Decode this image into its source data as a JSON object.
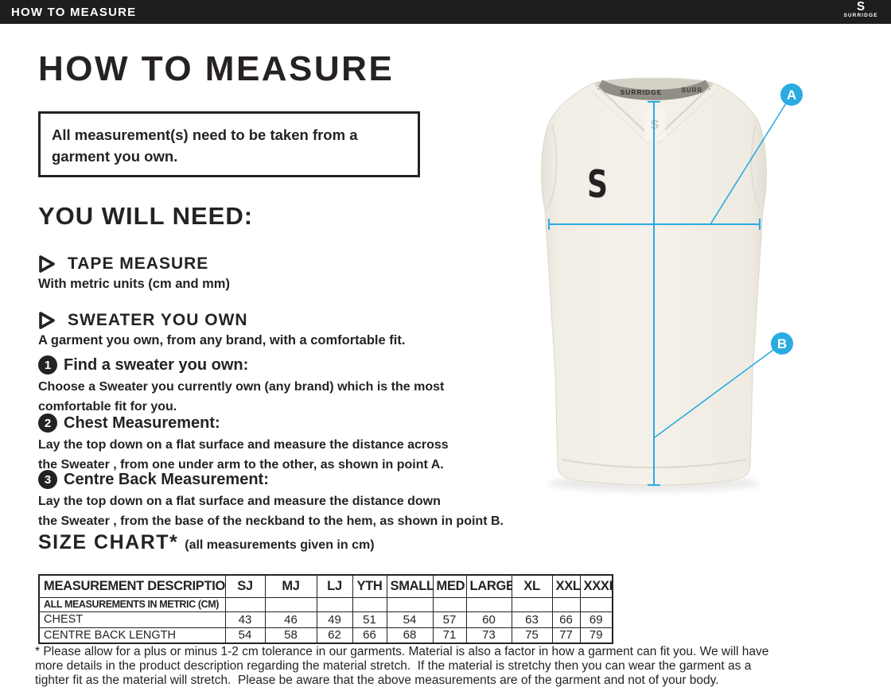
{
  "top_bar": {
    "title": "HOW TO MEASURE",
    "brand": "SURRIDGE",
    "logo_glyph": "S"
  },
  "page": {
    "title": "HOW TO MEASURE",
    "notice": "All measurement(s) need to be taken from a\ngarment you own."
  },
  "you_will_need": {
    "heading": "YOU WILL NEED:",
    "items": [
      {
        "title": "TAPE MEASURE",
        "description": "With metric units (cm and mm)"
      },
      {
        "title": "SWEATER YOU OWN",
        "description": "A garment you own, from any brand, with a comfortable fit."
      }
    ]
  },
  "steps": [
    {
      "number": "1",
      "title": "Find a sweater you own:",
      "description": "Choose a Sweater you currently own (any brand) which is the most\ncomfortable fit for you."
    },
    {
      "number": "2",
      "title": "Chest Measurement:",
      "description": "Lay the top down on a flat surface and measure the distance across\nthe Sweater , from one under arm to the other, as shown in point A."
    },
    {
      "number": "3",
      "title": "Centre Back Measurement:",
      "description": "Lay the top down on a flat surface and measure the distance down\nthe Sweater , from the base of the neckband to the hem, as shown in point B."
    }
  ],
  "size_chart": {
    "heading": "SIZE CHART*",
    "subheading": "(all measurements given in cm)",
    "columns": [
      "MEASUREMENT DESCRIPTION",
      "SJ",
      "MJ",
      "LJ",
      "YTH",
      "SMALL",
      "MED",
      "LARGE",
      "XL",
      "XXL",
      "XXXL"
    ],
    "rows": [
      {
        "label": "ALL MEASUREMENTS IN METRIC (CM)",
        "bold": true,
        "values": [
          "",
          "",
          "",
          "",
          "",
          "",
          "",
          "",
          "",
          ""
        ]
      },
      {
        "label": "CHEST",
        "bold": false,
        "values": [
          "43",
          "46",
          "49",
          "51",
          "54",
          "57",
          "60",
          "63",
          "66",
          "69"
        ]
      },
      {
        "label": "CENTRE BACK LENGTH",
        "bold": false,
        "values": [
          "54",
          "58",
          "62",
          "66",
          "68",
          "71",
          "73",
          "75",
          "77",
          "79"
        ]
      }
    ]
  },
  "footnote": {
    "lines": [
      "* Please allow for a plus or minus 1-2 cm tolerance in our garments. Material is also a factor in how a garment can fit you. We will have",
      "more details in the product description regarding the material stretch.  If the material is stretchy then you can wear the garment as a",
      "tighter fit as the material will stretch.  Please be aware that the above measurements are of the garment and not of your body."
    ]
  },
  "figure": {
    "marker_a": "A",
    "marker_b": "B",
    "neck_label": "SURRIDGE",
    "neck_label_partial": "SURR",
    "chest_logo": "S",
    "accent_color": "#29abe2",
    "ink_color": "#262223",
    "garment_color": "#f2efe8"
  }
}
